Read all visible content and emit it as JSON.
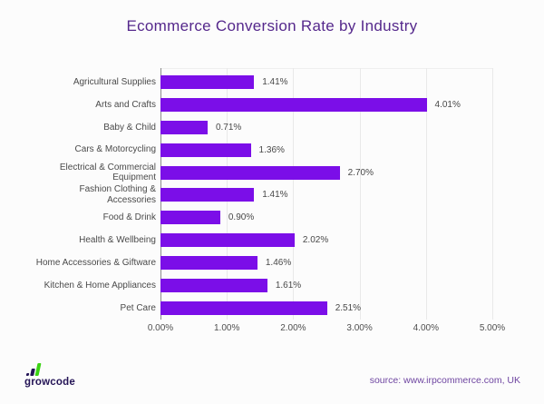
{
  "page": {
    "background": "#FCFCFC"
  },
  "title": "Ecommerce Conversion Rate by Industry",
  "colors": {
    "title": "#55288C",
    "bar": "#7B0EE8",
    "brand_navy": "#241456",
    "brand_green": "#3BD314",
    "source_text": "#6F46A1",
    "gridline": "#E9E9E9",
    "axis_line": "#8C8C8C"
  },
  "chart_data": {
    "type": "bar",
    "orientation": "horizontal",
    "title": "Ecommerce Conversion Rate by Industry",
    "categories": [
      "Agricultural Supplies",
      "Arts and Crafts",
      "Baby & Child",
      "Cars & Motorcycling",
      "Electrical & Commercial Equipment",
      "Fashion Clothing & Accessories",
      "Food & Drink",
      "Health & Wellbeing",
      "Home Accessories & Giftware",
      "Kitchen & Home Appliances",
      "Pet Care"
    ],
    "values": [
      1.41,
      4.01,
      0.71,
      1.36,
      2.7,
      1.41,
      0.9,
      2.02,
      1.46,
      1.61,
      2.51
    ],
    "value_labels": [
      "1.41%",
      "4.01%",
      "0.71%",
      "1.36%",
      "2.70%",
      "1.41%",
      "0.90%",
      "2.02%",
      "1.46%",
      "1.61%",
      "2.51%"
    ],
    "x_tick_labels": [
      "0.00%",
      "1.00%",
      "2.00%",
      "3.00%",
      "4.00%",
      "5.00%"
    ],
    "x_tick_values": [
      0,
      1,
      2,
      3,
      4,
      5
    ],
    "xlim": [
      0,
      5
    ],
    "xlabel": "",
    "ylabel": "",
    "grid": true,
    "legend": "none",
    "bar_color": "#7B0EE8"
  },
  "footer": {
    "logo_text": "growcode",
    "source_text": "source: www.irpcommerce.com, UK"
  }
}
